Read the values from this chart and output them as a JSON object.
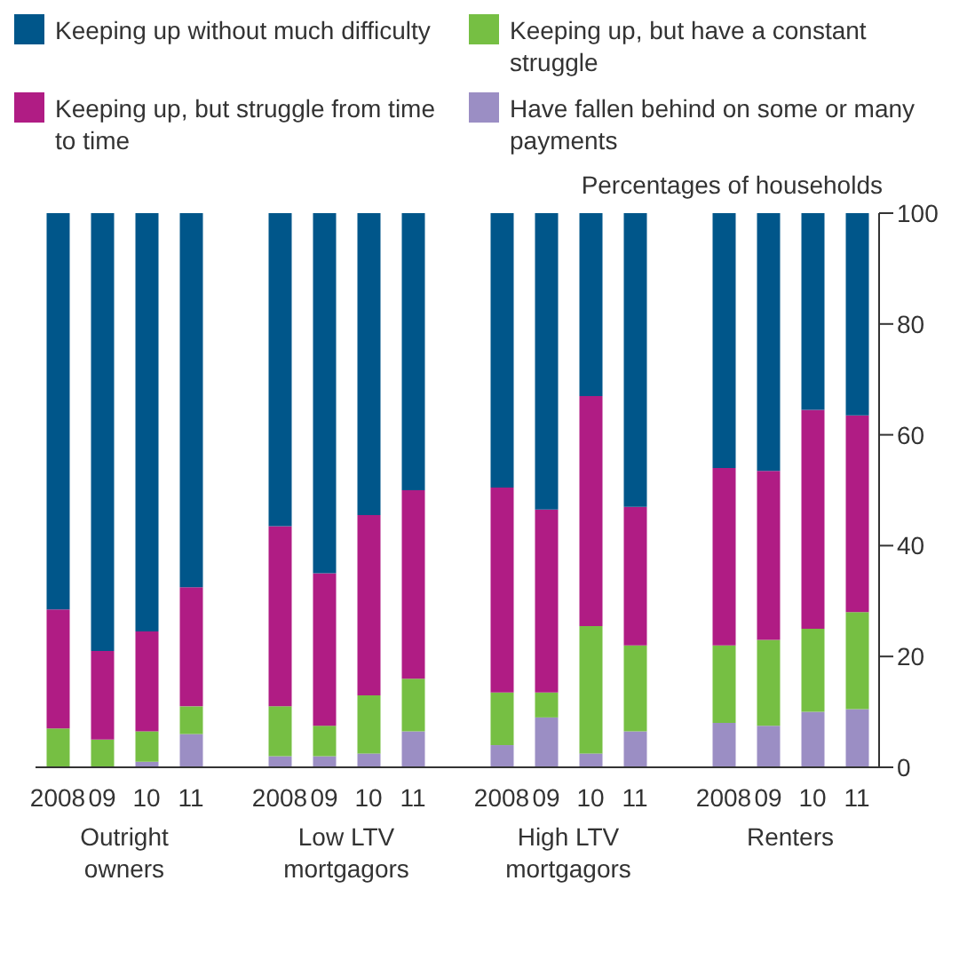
{
  "chart_data": {
    "type": "bar",
    "stacked": true,
    "ylabel": "Percentages of households",
    "legend": "top left",
    "categories": [
      "2008",
      "09",
      "10",
      "11",
      null,
      "2008",
      "09",
      "10",
      "11",
      null,
      "2008",
      "09",
      "10",
      "11",
      null,
      "2008",
      "09",
      "10",
      "11"
    ],
    "series": [
      {
        "name": "Have fallen behind on some or many payments",
        "color": "#9b8ec4",
        "values": [
          0,
          0,
          1,
          6,
          null,
          2,
          2,
          2.5,
          6.5,
          null,
          4,
          9,
          2.5,
          6.5,
          null,
          8,
          7.5,
          10,
          10.5
        ]
      },
      {
        "name": "Keeping up, but have a constant struggle",
        "color": "#76bf43",
        "values": [
          7,
          5,
          5.5,
          5,
          null,
          9,
          5.5,
          10.5,
          9.5,
          null,
          9.5,
          4.5,
          23,
          15.5,
          null,
          14,
          15.5,
          15,
          17.5
        ]
      },
      {
        "name": "Keeping up, but struggle from time to time",
        "color": "#b01c84",
        "values": [
          21.5,
          16,
          18,
          21.5,
          null,
          32.5,
          27.5,
          32.5,
          34,
          null,
          37,
          33,
          41.5,
          25,
          null,
          32,
          30.5,
          39.5,
          35.5
        ]
      },
      {
        "name": "Keeping up without much difficulty",
        "color": "#00568a",
        "values": [
          71.5,
          79,
          75.5,
          67.5,
          null,
          56.5,
          65,
          54.5,
          50,
          null,
          49.5,
          53.5,
          33,
          53,
          null,
          46,
          46.5,
          35.5,
          36.5
        ]
      }
    ],
    "annotations": [
      "Outright owners",
      "Low LTV mortgagors",
      "High LTV mortgagors",
      "Renters"
    ],
    "ylim": [
      0,
      100
    ],
    "yticks": [
      0,
      20,
      40,
      60,
      80,
      100
    ]
  }
}
